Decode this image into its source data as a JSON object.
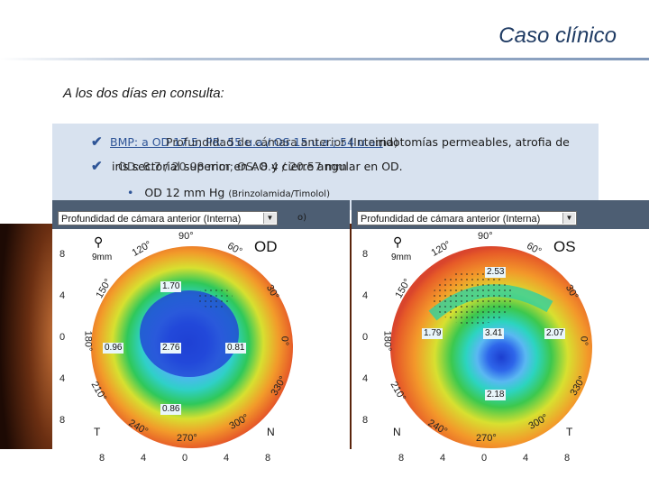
{
  "header": {
    "title": "Caso clínico"
  },
  "subtitle": "A los dos días en consulta:",
  "bullets": {
    "line1_a": "BMP: a OD 17.5; PR: 55 u.a./ OS 15 u.a.; 54 u.a.;",
    "line1_b": "Profundidad de cámara anterior (Interna)",
    "line1_c": "iridotomías permeables, atrofia de",
    "line2_a": "iris sectorial superior en AO y cierre angular en OD.",
    "line2_b": "OD: 8.7 / 20.98 mm; OS: 8.4 / 20.57 mm",
    "iop_dot": "•",
    "iop_text": "OD 12 mm Hg",
    "iop_small": "(Brinzolamida/Timolol)",
    "paren": "o)"
  },
  "left_topo": {
    "dropdown": "Profundidad de cámara anterior (Interna)",
    "eye": "OD",
    "mm": "9mm",
    "values": [
      "1.70",
      "0.96",
      "2.76",
      "0.81",
      "0.86"
    ],
    "corners": [
      "T",
      "N"
    ],
    "yticks": [
      "8",
      "4",
      "0",
      "4",
      "8"
    ],
    "xticks": [
      "8",
      "4",
      "0",
      "4",
      "8"
    ],
    "degrees": [
      "90°",
      "120°",
      "60°",
      "150°",
      "30°",
      "180°",
      "0°",
      "210°",
      "330°",
      "240°",
      "300°",
      "270°"
    ]
  },
  "right_topo": {
    "dropdown": "Profundidad de cámara anterior (Interna)",
    "eye": "OS",
    "mm": "9mm",
    "values": [
      "2.53",
      "1.79",
      "3.41",
      "2.07",
      "2.18"
    ],
    "corners": [
      "N",
      "T"
    ],
    "yticks": [
      "8",
      "4",
      "0",
      "4",
      "8"
    ],
    "xticks": [
      "8",
      "4",
      "0",
      "4",
      "8"
    ],
    "degrees": [
      "90°",
      "120°",
      "60°",
      "150°",
      "30°",
      "180°",
      "0°",
      "210°",
      "330°",
      "240°",
      "300°",
      "270°"
    ]
  },
  "colors": {
    "title": "#1f3b63",
    "bullet": "#2f5597",
    "textbox": "#d8e2ef",
    "panel_head": "#4d5e73"
  }
}
